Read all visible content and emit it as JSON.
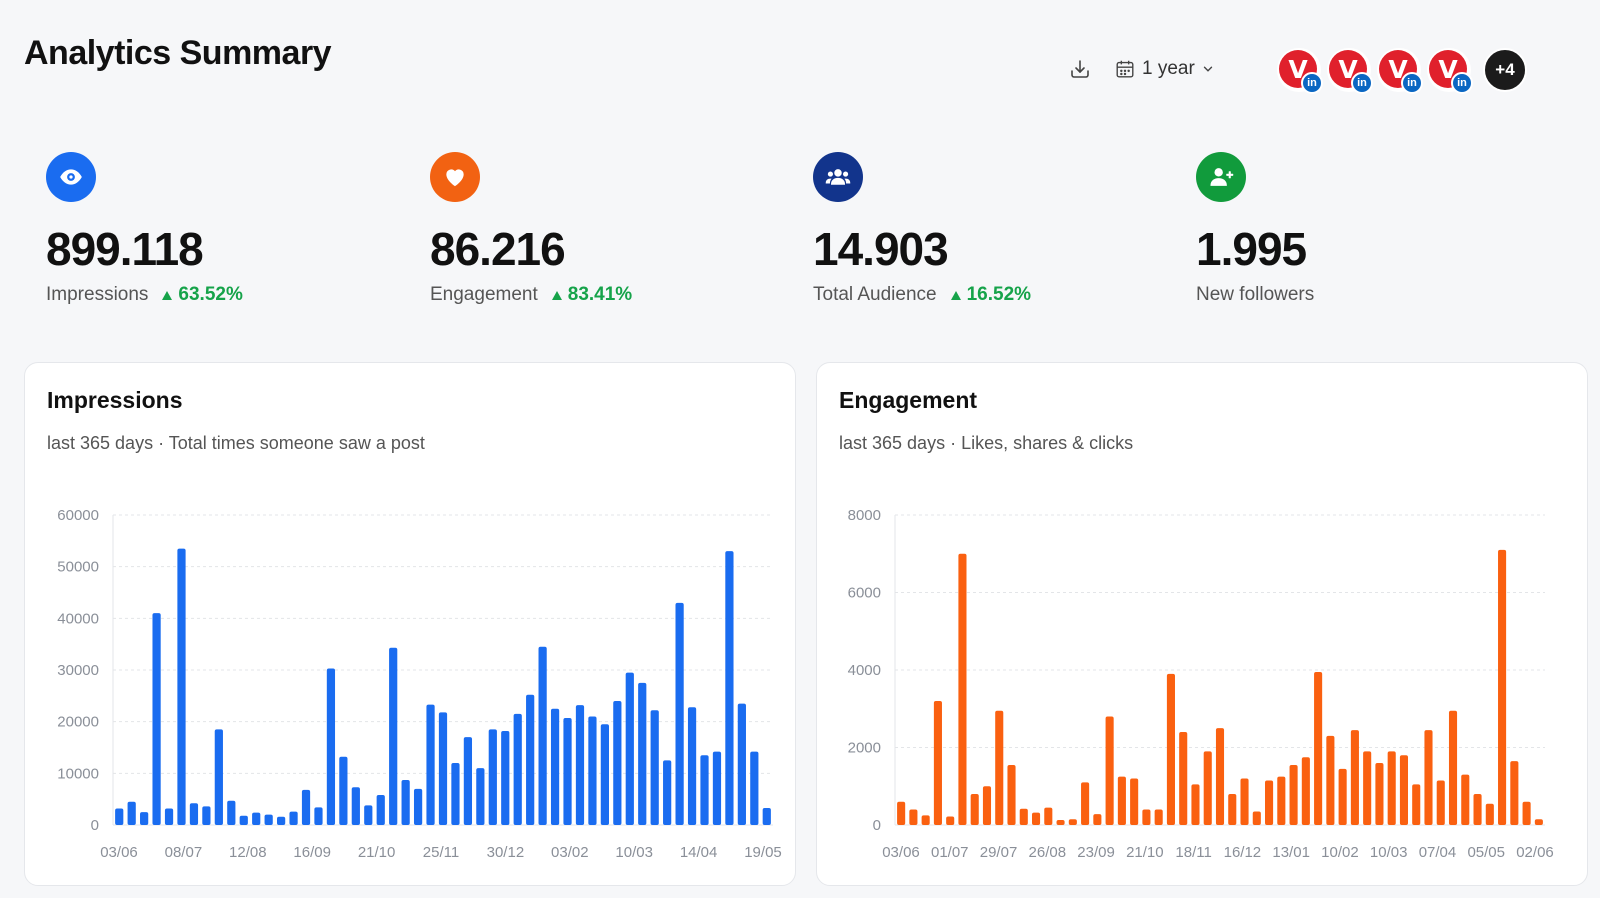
{
  "page": {
    "title": "Analytics Summary"
  },
  "toolbar": {
    "download_icon": "download-icon",
    "range_icon": "calendar-icon",
    "range_label": "1 year",
    "range_chevron": "chevron-down-icon"
  },
  "accounts": {
    "avatar_letter": "V",
    "network_badge": "in",
    "more_label": "+4"
  },
  "stats": [
    {
      "icon": "eye-icon",
      "color": "#1a6cf0",
      "value": "899.118",
      "label": "Impressions",
      "delta": "63.52%"
    },
    {
      "icon": "heart-icon",
      "color": "#f26212",
      "value": "86.216",
      "label": "Engagement",
      "delta": "83.41%"
    },
    {
      "icon": "users-icon",
      "color": "#12348c",
      "value": "14.903",
      "label": "Total Audience",
      "delta": "16.52%"
    },
    {
      "icon": "user-plus-icon",
      "color": "#119b3c",
      "value": "1.995",
      "label": "New followers",
      "delta": ""
    }
  ],
  "chart_data": [
    {
      "type": "bar",
      "title": "Impressions",
      "subtitle": "last 365 days · Total times someone saw a post",
      "color": "#1a6cf0",
      "ylim": [
        0,
        60000
      ],
      "yticks": [
        0,
        10000,
        20000,
        30000,
        40000,
        50000,
        60000
      ],
      "xticks": [
        "03/06",
        "08/07",
        "12/08",
        "16/09",
        "21/10",
        "25/11",
        "30/12",
        "03/02",
        "10/03",
        "14/04",
        "19/05"
      ],
      "values": [
        3200,
        4500,
        2500,
        41000,
        3200,
        53500,
        4200,
        3600,
        18500,
        4700,
        1800,
        2400,
        2000,
        1600,
        2600,
        6800,
        3400,
        30300,
        13200,
        7300,
        3800,
        5800,
        34300,
        8700,
        7000,
        23300,
        21800,
        12000,
        17000,
        11000,
        18500,
        18200,
        21500,
        25200,
        34500,
        22500,
        20700,
        23200,
        21000,
        19500,
        24000,
        29500,
        27500,
        22200,
        12500,
        43000,
        22800,
        13500,
        14200,
        53000,
        23500,
        14200,
        3300
      ]
    },
    {
      "type": "bar",
      "title": "Engagement",
      "subtitle": "last 365 days · Likes, shares & clicks",
      "color": "#fa6010",
      "ylim": [
        0,
        8000
      ],
      "yticks": [
        0,
        2000,
        4000,
        6000,
        8000
      ],
      "xticks": [
        "03/06",
        "01/07",
        "29/07",
        "26/08",
        "23/09",
        "21/10",
        "18/11",
        "16/12",
        "13/01",
        "10/02",
        "10/03",
        "07/04",
        "05/05",
        "02/06"
      ],
      "values": [
        600,
        400,
        250,
        3200,
        220,
        7000,
        800,
        1000,
        2950,
        1550,
        420,
        320,
        450,
        130,
        150,
        1100,
        280,
        2800,
        1250,
        1200,
        400,
        400,
        3900,
        2400,
        1050,
        1900,
        2500,
        800,
        1200,
        350,
        1150,
        1250,
        1550,
        1750,
        3950,
        2300,
        1450,
        2450,
        1900,
        1600,
        1900,
        1800,
        1050,
        2450,
        1150,
        2950,
        1300,
        800,
        550,
        7100,
        1650,
        600,
        150
      ]
    }
  ]
}
